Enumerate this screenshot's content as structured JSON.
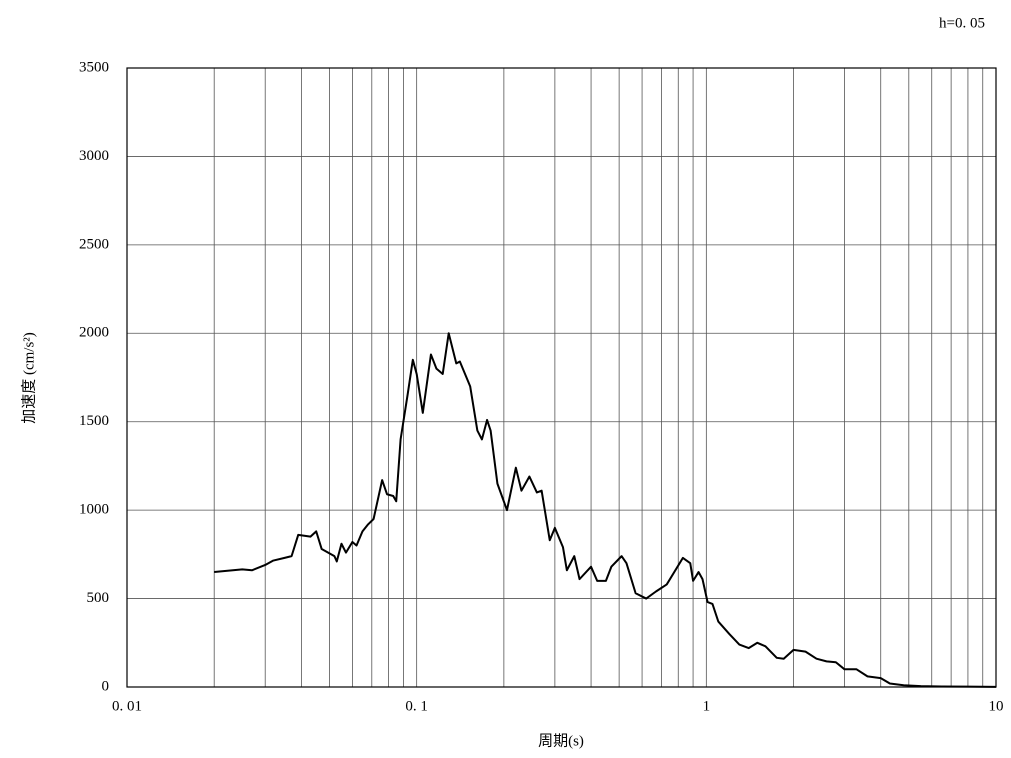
{
  "chart_data": {
    "type": "line",
    "annotation": "h=0. 05",
    "xlabel": "周期(s)",
    "ylabel": "加速度 (cm/s²)",
    "xscale": "log",
    "xlim": [
      0.01,
      10
    ],
    "xticks": [
      {
        "value": 0.01,
        "label": "0. 01"
      },
      {
        "value": 0.1,
        "label": "0. 1"
      },
      1,
      10
    ],
    "xminorticks": [
      0.02,
      0.03,
      0.04,
      0.05,
      0.06,
      0.07,
      0.08,
      0.09,
      0.2,
      0.3,
      0.4,
      0.5,
      0.6,
      0.7,
      0.8,
      0.9,
      2,
      3,
      4,
      5,
      6,
      7,
      8,
      9
    ],
    "ylim": [
      0,
      3500
    ],
    "yticks": [
      0,
      500,
      1000,
      1500,
      2000,
      2500,
      3000,
      3500
    ],
    "grid": true,
    "series": [
      {
        "color": "#000000",
        "x": [
          0.02,
          0.025,
          0.027,
          0.03,
          0.032,
          0.035,
          0.037,
          0.039,
          0.043,
          0.045,
          0.047,
          0.052,
          0.053,
          0.055,
          0.057,
          0.06,
          0.062,
          0.065,
          0.068,
          0.071,
          0.076,
          0.079,
          0.083,
          0.085,
          0.088,
          0.093,
          0.097,
          0.1,
          0.105,
          0.112,
          0.117,
          0.123,
          0.129,
          0.137,
          0.141,
          0.153,
          0.162,
          0.168,
          0.175,
          0.18,
          0.19,
          0.205,
          0.22,
          0.23,
          0.245,
          0.26,
          0.27,
          0.288,
          0.3,
          0.32,
          0.33,
          0.35,
          0.365,
          0.4,
          0.42,
          0.45,
          0.47,
          0.51,
          0.53,
          0.57,
          0.62,
          0.67,
          0.73,
          0.83,
          0.88,
          0.9,
          0.94,
          0.97,
          1.01,
          1.05,
          1.1,
          1.2,
          1.3,
          1.4,
          1.5,
          1.6,
          1.75,
          1.85,
          2.0,
          2.2,
          2.4,
          2.6,
          2.8,
          3.0,
          3.3,
          3.6,
          4.0,
          4.3,
          4.8,
          5.5,
          6.5,
          8.0,
          10
        ],
        "values": [
          650,
          665,
          660,
          690,
          715,
          730,
          740,
          860,
          850,
          880,
          780,
          740,
          710,
          810,
          760,
          820,
          800,
          880,
          920,
          950,
          1170,
          1090,
          1080,
          1050,
          1400,
          1650,
          1850,
          1770,
          1550,
          1880,
          1800,
          1770,
          2000,
          1830,
          1840,
          1700,
          1450,
          1400,
          1510,
          1450,
          1150,
          1000,
          1240,
          1110,
          1190,
          1100,
          1110,
          830,
          900,
          790,
          660,
          740,
          610,
          680,
          600,
          600,
          680,
          740,
          700,
          530,
          500,
          540,
          580,
          730,
          700,
          600,
          650,
          610,
          480,
          470,
          370,
          300,
          240,
          220,
          250,
          230,
          165,
          160,
          210,
          200,
          160,
          145,
          140,
          100,
          100,
          60,
          50,
          20,
          10,
          5,
          3,
          2,
          1
        ]
      }
    ]
  }
}
